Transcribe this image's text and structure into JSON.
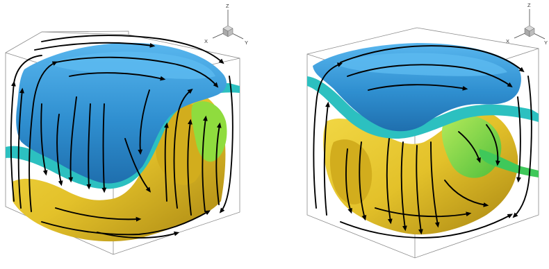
{
  "panels": [
    {
      "id": "left",
      "axis_labels": {
        "z": "Z",
        "x": "X",
        "y": "Y"
      }
    },
    {
      "id": "right",
      "axis_labels": {
        "z": "Z",
        "x": "X",
        "y": "Y"
      }
    }
  ],
  "colors": {
    "upper_layer": "#2f8fd0",
    "upper_layer_highlight": "#4fb0ea",
    "interface_cyan": "#2cc0c0",
    "interface_green": "#3fc85a",
    "mid_green": "#8fdc3e",
    "lower_layer": "#e3c12a",
    "lower_layer_shadow": "#b38f16",
    "streamline": "#000000",
    "cube_edge": "#8a8a8a",
    "triad_cube": "#b8b8b8"
  }
}
